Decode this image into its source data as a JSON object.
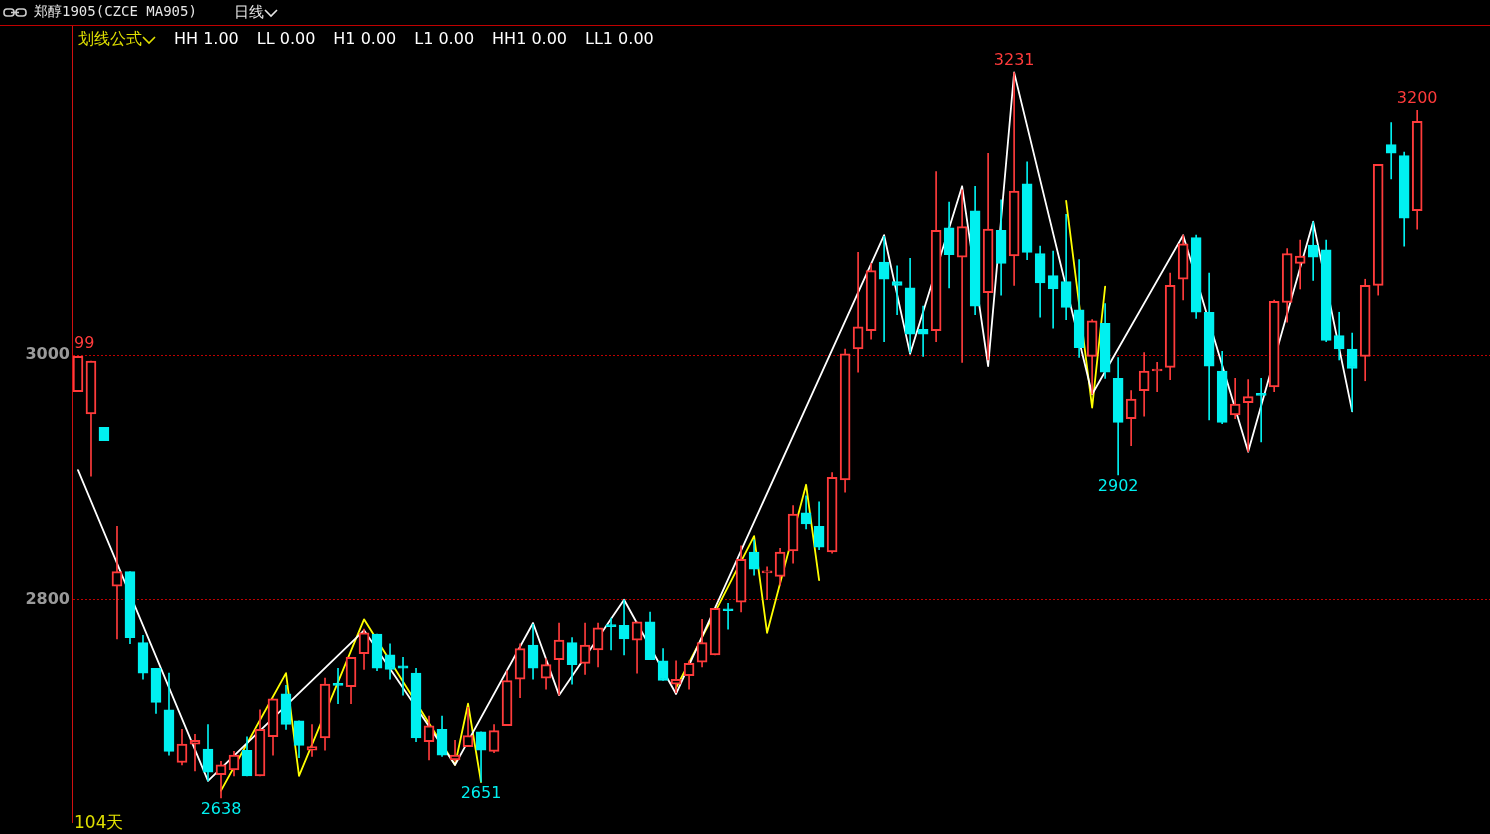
{
  "chart_data": {
    "type": "candlestick",
    "title": "郑醇1905(CZCE MA905)",
    "subtitle": "日线",
    "annotations": [
      "划线公式",
      "HH 1.00",
      "LL 0.00",
      "H1 0.00",
      "L1 0.00",
      "HH1 0.00",
      "LL1 0.00",
      "104天",
      {
        "text": "99",
        "y": 2999
      },
      {
        "text": "2638",
        "y": 2638
      },
      {
        "text": "2651",
        "y": 2651
      },
      {
        "text": "3231",
        "y": 3231
      },
      {
        "text": "2902",
        "y": 2902
      },
      {
        "text": "3200",
        "y": 3200
      }
    ],
    "categories": [
      null,
      null,
      null,
      null,
      null,
      null,
      null,
      null,
      null,
      null,
      null,
      null,
      null,
      null,
      null,
      null,
      null,
      null,
      null,
      null,
      null,
      null,
      null,
      null,
      null,
      null,
      null,
      null,
      null,
      null,
      null,
      null,
      null,
      null,
      null,
      null,
      null,
      null,
      null,
      null,
      null,
      null,
      null,
      null,
      null,
      null,
      null,
      null,
      null,
      null,
      null,
      null,
      null,
      null,
      null,
      null,
      null,
      null,
      null,
      null,
      null,
      null,
      null,
      null,
      null,
      null,
      null,
      null,
      null,
      null,
      null,
      null,
      null,
      null,
      null,
      null,
      null,
      null,
      null,
      null,
      null,
      null,
      null,
      null,
      null,
      null,
      null,
      null,
      null,
      null,
      null,
      null,
      null,
      null,
      null,
      null,
      null,
      null,
      null,
      null,
      null,
      null,
      null,
      null
    ],
    "ohlc": [
      [
        2970,
        2999,
        2970,
        2999
      ],
      [
        2952,
        2995,
        2901,
        2995
      ],
      [
        2941,
        2941,
        2930,
        2930
      ],
      [
        2811,
        2860,
        2768,
        2823
      ],
      [
        2823,
        2823,
        2764,
        2769
      ],
      [
        2765,
        2771,
        2735,
        2740
      ],
      [
        2744,
        2744,
        2707,
        2716
      ],
      [
        2710,
        2740,
        2673,
        2676
      ],
      [
        2667,
        2694,
        2665,
        2682
      ],
      [
        2682,
        2690,
        2660,
        2685
      ],
      [
        2678,
        2698,
        2652,
        2659
      ],
      [
        2657,
        2668,
        2638,
        2665
      ],
      [
        2661,
        2676,
        2656,
        2673
      ],
      [
        2677,
        2688,
        2656,
        2656
      ],
      [
        2656,
        2710,
        2656,
        2694
      ],
      [
        2688,
        2719,
        2673,
        2719
      ],
      [
        2723,
        2730,
        2694,
        2698
      ],
      [
        2701,
        2701,
        2671,
        2681
      ],
      [
        2677,
        2698,
        2672,
        2680
      ],
      [
        2687,
        2736,
        2677,
        2731
      ],
      [
        2731,
        2744,
        2715,
        2730
      ],
      [
        2729,
        2753,
        2715,
        2753
      ],
      [
        2756,
        2776,
        2743,
        2773
      ],
      [
        2772,
        2772,
        2742,
        2744
      ],
      [
        2755,
        2764,
        2735,
        2743
      ],
      [
        2746,
        2753,
        2722,
        2744
      ],
      [
        2740,
        2744,
        2684,
        2687
      ],
      [
        2684,
        2705,
        2669,
        2697
      ],
      [
        2694,
        2705,
        2672,
        2673
      ],
      [
        2669,
        2685,
        2668,
        2673
      ],
      [
        2680,
        2712,
        2680,
        2689
      ],
      [
        2692,
        2692,
        2651,
        2677
      ],
      [
        2676,
        2698,
        2675,
        2693
      ],
      [
        2697,
        2742,
        2697,
        2734
      ],
      [
        2735,
        2764,
        2720,
        2760
      ],
      [
        2763,
        2780,
        2735,
        2744
      ],
      [
        2736,
        2752,
        2727,
        2747
      ],
      [
        2751,
        2781,
        2722,
        2767
      ],
      [
        2765,
        2769,
        2731,
        2747
      ],
      [
        2748,
        2781,
        2739,
        2763
      ],
      [
        2759,
        2781,
        2745,
        2777
      ],
      [
        2779,
        2785,
        2759,
        2778
      ],
      [
        2779,
        2800,
        2755,
        2768
      ],
      [
        2767,
        2782,
        2740,
        2782
      ],
      [
        2782,
        2790,
        2751,
        2751
      ],
      [
        2750,
        2760,
        2734,
        2734
      ],
      [
        2731,
        2750,
        2724,
        2735
      ],
      [
        2738,
        2750,
        2727,
        2748
      ],
      [
        2749,
        2784,
        2745,
        2765
      ],
      [
        2755,
        2793,
        2755,
        2793
      ],
      [
        2792,
        2797,
        2776,
        2791
      ],
      [
        2798,
        2844,
        2790,
        2833
      ],
      [
        2839,
        2849,
        2820,
        2825
      ],
      [
        2822,
        2827,
        2800,
        2823
      ],
      [
        2819,
        2842,
        2812,
        2839
      ],
      [
        2840,
        2877,
        2830,
        2870
      ],
      [
        2871,
        2885,
        2858,
        2862
      ],
      [
        2860,
        2880,
        2841,
        2843
      ],
      [
        2839,
        2904,
        2838,
        2900
      ],
      [
        2898,
        3005,
        2888,
        3001
      ],
      [
        3005,
        3084,
        2986,
        3023
      ],
      [
        3020,
        3075,
        3013,
        3069
      ],
      [
        3076,
        3097,
        3011,
        3062
      ],
      [
        3060,
        3073,
        3033,
        3057
      ],
      [
        3055,
        3079,
        3002,
        3017
      ],
      [
        3021,
        3040,
        2999,
        3017
      ],
      [
        3020,
        3150,
        3011,
        3102
      ],
      [
        3104,
        3125,
        3055,
        3082
      ],
      [
        3080,
        3135,
        2994,
        3105
      ],
      [
        3118,
        3138,
        3033,
        3040
      ],
      [
        3051,
        3165,
        2996,
        3103
      ],
      [
        3102,
        3127,
        3049,
        3075
      ],
      [
        3081,
        3231,
        3057,
        3134
      ],
      [
        3140,
        3158,
        3078,
        3084
      ],
      [
        3083,
        3089,
        3031,
        3059
      ],
      [
        3065,
        3085,
        3022,
        3054
      ],
      [
        3060,
        3115,
        3029,
        3039
      ],
      [
        3037,
        3078,
        2998,
        3006
      ],
      [
        2999,
        3029,
        2968,
        3028
      ],
      [
        3026,
        3042,
        2981,
        2986
      ],
      [
        2981,
        2998,
        2902,
        2945
      ],
      [
        2948,
        2971,
        2926,
        2964
      ],
      [
        2971,
        3002,
        2950,
        2987
      ],
      [
        2987,
        2994,
        2970,
        2988
      ],
      [
        2990,
        3067,
        2980,
        3057
      ],
      [
        3062,
        3098,
        3045,
        3091
      ],
      [
        3096,
        3098,
        3030,
        3035
      ],
      [
        3035,
        3067,
        2947,
        2991
      ],
      [
        2987,
        3003,
        2944,
        2945
      ],
      [
        2951,
        2981,
        2948,
        2960
      ],
      [
        2961,
        2980,
        2921,
        2966
      ],
      [
        2968,
        2981,
        2929,
        2967
      ],
      [
        2974,
        3045,
        2970,
        3044
      ],
      [
        3043,
        3087,
        3027,
        3083
      ],
      [
        3075,
        3094,
        3054,
        3081
      ],
      [
        3090,
        3109,
        3061,
        3080
      ],
      [
        3086,
        3094,
        3011,
        3012
      ],
      [
        3016,
        3035,
        2996,
        3005
      ],
      [
        3005,
        3018,
        2954,
        2989
      ],
      [
        2999,
        3062,
        2979,
        3057
      ],
      [
        3057,
        3156,
        3049,
        3156
      ],
      [
        3172,
        3190,
        3144,
        3165
      ],
      [
        3163,
        3166,
        3089,
        3112
      ],
      [
        3118,
        3200,
        3103,
        3191
      ]
    ],
    "colors": [
      "#ff3b3b",
      "#ff3b3b",
      "#00f0f0",
      "#ff3b3b",
      "#00f0f0",
      "#00f0f0",
      "#00f0f0",
      "#00f0f0",
      "#ff3b3b",
      "#ff3b3b",
      "#00f0f0",
      "#ff3b3b",
      "#ff3b3b",
      "#00f0f0",
      "#ff3b3b",
      "#ff3b3b",
      "#00f0f0",
      "#00f0f0",
      "#ff3b3b",
      "#ff3b3b",
      "#00f0f0",
      "#ff3b3b",
      "#ff3b3b",
      "#00f0f0",
      "#00f0f0",
      "#00f0f0",
      "#00f0f0",
      "#ff3b3b",
      "#00f0f0",
      "#ff3b3b",
      "#ff3b3b",
      "#00f0f0",
      "#ff3b3b",
      "#ff3b3b",
      "#ff3b3b",
      "#00f0f0",
      "#ff3b3b",
      "#ff3b3b",
      "#00f0f0",
      "#ff3b3b",
      "#ff3b3b",
      "#00f0f0",
      "#00f0f0",
      "#ff3b3b",
      "#00f0f0",
      "#00f0f0",
      "#ff3b3b",
      "#ff3b3b",
      "#ff3b3b",
      "#ff3b3b",
      "#00f0f0",
      "#ff3b3b",
      "#00f0f0",
      "#ff3b3b",
      "#ff3b3b",
      "#ff3b3b",
      "#00f0f0",
      "#00f0f0",
      "#ff3b3b",
      "#ff3b3b",
      "#ff3b3b",
      "#ff3b3b",
      "#00f0f0",
      "#00f0f0",
      "#00f0f0",
      "#00f0f0",
      "#ff3b3b",
      "#00f0f0",
      "#ff3b3b",
      "#00f0f0",
      "#ff3b3b",
      "#00f0f0",
      "#ff3b3b",
      "#00f0f0",
      "#00f0f0",
      "#00f0f0",
      "#00f0f0",
      "#00f0f0",
      "#ff3b3b",
      "#00f0f0",
      "#00f0f0",
      "#ff3b3b",
      "#ff3b3b",
      "#ff3b3b",
      "#ff3b3b",
      "#ff3b3b",
      "#00f0f0",
      "#00f0f0",
      "#00f0f0",
      "#ff3b3b",
      "#ff3b3b",
      "#00f0f0",
      "#ff3b3b",
      "#ff3b3b",
      "#ff3b3b",
      "#00f0f0",
      "#00f0f0",
      "#00f0f0",
      "#00f0f0",
      "#ff3b3b",
      "#ff3b3b",
      "#00f0f0",
      "#00f0f0",
      "#ff3b3b"
    ],
    "series": [
      {
        "type": "line",
        "color": "#ffffff",
        "values": [
          2906,
          null,
          null,
          null,
          null,
          null,
          null,
          null,
          null,
          null,
          2652,
          null,
          null,
          null,
          null,
          null,
          null,
          null,
          null,
          null,
          null,
          null,
          2775,
          null,
          null,
          null,
          null,
          null,
          null,
          2665,
          null,
          null,
          null,
          null,
          null,
          2781,
          null,
          2722,
          null,
          null,
          null,
          null,
          2800,
          null,
          null,
          null,
          2723,
          null,
          null,
          null,
          null,
          null,
          null,
          null,
          null,
          null,
          null,
          null,
          null,
          null,
          null,
          null,
          3098,
          null,
          3001,
          null,
          null,
          null,
          3138,
          null,
          2991,
          null,
          3231,
          null,
          null,
          null,
          null,
          null,
          2968,
          null,
          null,
          null,
          null,
          null,
          null,
          3098,
          null,
          null,
          null,
          null,
          2921,
          null,
          null,
          null,
          null,
          3109,
          null,
          null,
          2954,
          null,
          null,
          null,
          null,
          null
        ]
      },
      {
        "type": "line",
        "color": "#ffff00",
        "values": [
          null,
          null,
          null,
          null,
          null,
          null,
          null,
          null,
          null,
          null,
          null,
          2644,
          null,
          null,
          null,
          null,
          2740,
          2656,
          null,
          null,
          null,
          null,
          2784,
          null,
          null,
          null,
          null,
          null,
          null,
          2665,
          2715,
          2651,
          null,
          null,
          null,
          null,
          null,
          null,
          null,
          null,
          null,
          null,
          null,
          null,
          null,
          null,
          null,
          null,
          null,
          null,
          null,
          null,
          null,
          null,
          null,
          null,
          null,
          null,
          null,
          null,
          null,
          null,
          null,
          null,
          null,
          null,
          null,
          null,
          null,
          null,
          null,
          null,
          null,
          null,
          null,
          null,
          null,
          null,
          null,
          null,
          null,
          null,
          null,
          null,
          null,
          null,
          null,
          null,
          null,
          null,
          null,
          null,
          null,
          null,
          null,
          null,
          null,
          null,
          null,
          null,
          null,
          null,
          null,
          null
        ]
      },
      {
        "type": "line",
        "color": "#ffff00",
        "values": [
          null,
          null,
          null,
          null,
          null,
          null,
          null,
          null,
          null,
          null,
          null,
          null,
          null,
          null,
          null,
          null,
          null,
          null,
          null,
          null,
          null,
          null,
          null,
          null,
          null,
          null,
          null,
          null,
          null,
          null,
          null,
          null,
          null,
          null,
          null,
          null,
          null,
          null,
          null,
          null,
          null,
          null,
          null,
          null,
          null,
          null,
          2728,
          null,
          null,
          null,
          null,
          null,
          2852,
          2773,
          null,
          null,
          2894,
          2816,
          null,
          null,
          null,
          null,
          null,
          null,
          null,
          null,
          null,
          null,
          null,
          null,
          null,
          null,
          null,
          null,
          null,
          null,
          null,
          null,
          null,
          null,
          null,
          null,
          null,
          null,
          null,
          null,
          null,
          null,
          null,
          null,
          null,
          null,
          null,
          null,
          null,
          null,
          null,
          null,
          null,
          null,
          null,
          null,
          null,
          null
        ]
      },
      {
        "type": "line",
        "color": "#ffff00",
        "values": [
          null,
          null,
          null,
          null,
          null,
          null,
          null,
          null,
          null,
          null,
          null,
          null,
          null,
          null,
          null,
          null,
          null,
          null,
          null,
          null,
          null,
          null,
          null,
          null,
          null,
          null,
          null,
          null,
          null,
          null,
          null,
          null,
          null,
          null,
          null,
          null,
          null,
          null,
          null,
          null,
          null,
          null,
          null,
          null,
          null,
          null,
          null,
          null,
          null,
          null,
          null,
          null,
          null,
          null,
          null,
          null,
          null,
          null,
          null,
          null,
          null,
          null,
          null,
          null,
          null,
          null,
          null,
          null,
          null,
          null,
          null,
          null,
          null,
          null,
          null,
          null,
          3126,
          null,
          2957,
          3056,
          null,
          null,
          null,
          null,
          null,
          null,
          null,
          null,
          null,
          null,
          null,
          null,
          null,
          null,
          null,
          null,
          null,
          null,
          null,
          null,
          null,
          null,
          null,
          null
        ]
      }
    ],
    "ylim": [
      2618,
      3269
    ],
    "yticks": [
      2800,
      3000
    ],
    "grid": "y",
    "legend": false
  }
}
